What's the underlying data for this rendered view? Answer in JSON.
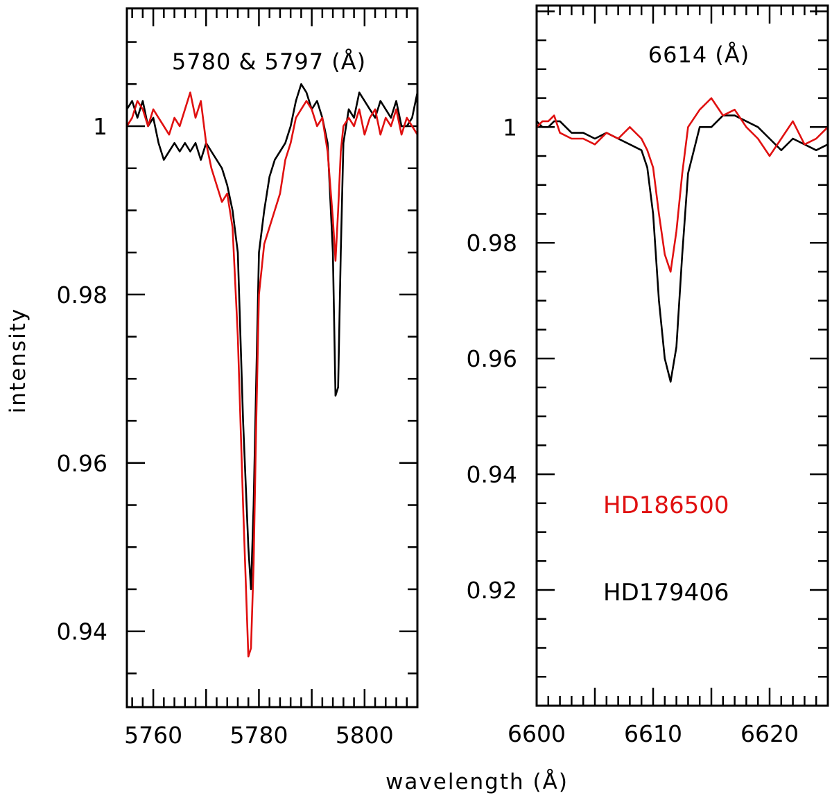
{
  "chart_data": [
    {
      "type": "line",
      "title": "5780 & 5797 (Å)",
      "xlabel": "wavelength (Å)",
      "ylabel": "intensity",
      "xlim": [
        5755,
        5810
      ],
      "ylim": [
        0.931,
        1.014
      ],
      "xticks": [
        5760,
        5780,
        5800
      ],
      "xtick_labels": [
        "5760",
        "5780",
        "5800"
      ],
      "yticks": [
        0.94,
        0.96,
        0.98,
        1
      ],
      "ytick_labels": [
        "0.94",
        "0.96",
        "0.98",
        "1"
      ],
      "series": [
        {
          "name": "HD179406",
          "color": "#000000",
          "x": [
            5755,
            5756,
            5757,
            5758,
            5759,
            5760,
            5761,
            5762,
            5763,
            5764,
            5765,
            5766,
            5767,
            5768,
            5769,
            5770,
            5771,
            5772,
            5773,
            5774,
            5775,
            5776,
            5777,
            5778,
            5778.5,
            5779,
            5779.5,
            5780,
            5781,
            5782,
            5783,
            5784,
            5785,
            5786,
            5787,
            5788,
            5789,
            5790,
            5791,
            5792,
            5793,
            5794,
            5794.5,
            5795,
            5795.5,
            5796,
            5797,
            5798,
            5799,
            5800,
            5801,
            5802,
            5803,
            5804,
            5805,
            5806,
            5807,
            5808,
            5809,
            5810
          ],
          "y": [
            1.002,
            1.003,
            1.001,
            1.003,
            1.0,
            1.001,
            0.998,
            0.996,
            0.997,
            0.998,
            0.997,
            0.998,
            0.997,
            0.998,
            0.996,
            0.998,
            0.997,
            0.996,
            0.995,
            0.993,
            0.99,
            0.985,
            0.965,
            0.95,
            0.945,
            0.955,
            0.97,
            0.985,
            0.99,
            0.994,
            0.996,
            0.997,
            0.998,
            1.0,
            1.003,
            1.005,
            1.004,
            1.002,
            1.003,
            1.001,
            0.998,
            0.985,
            0.968,
            0.969,
            0.985,
            0.998,
            1.002,
            1.001,
            1.004,
            1.003,
            1.002,
            1.001,
            1.003,
            1.002,
            1.001,
            1.003,
            1.0,
            1.0,
            1.001,
            1.004
          ]
        },
        {
          "name": "HD186500",
          "color": "#e01010",
          "x": [
            5755,
            5756,
            5757,
            5758,
            5759,
            5760,
            5761,
            5762,
            5763,
            5764,
            5765,
            5766,
            5767,
            5768,
            5769,
            5770,
            5771,
            5772,
            5773,
            5774,
            5775,
            5776,
            5777,
            5778,
            5778.5,
            5779,
            5779.5,
            5780,
            5781,
            5782,
            5783,
            5784,
            5785,
            5786,
            5787,
            5788,
            5789,
            5790,
            5791,
            5792,
            5793,
            5794,
            5794.5,
            5795,
            5795.5,
            5796,
            5797,
            5798,
            5799,
            5800,
            5801,
            5802,
            5803,
            5804,
            5805,
            5806,
            5807,
            5808,
            5809,
            5810
          ],
          "y": [
            1.0,
            1.001,
            1.003,
            1.002,
            1.0,
            1.002,
            1.001,
            1.0,
            0.999,
            1.001,
            1.0,
            1.002,
            1.004,
            1.001,
            1.003,
            0.998,
            0.995,
            0.993,
            0.991,
            0.992,
            0.988,
            0.975,
            0.955,
            0.937,
            0.938,
            0.948,
            0.965,
            0.98,
            0.986,
            0.988,
            0.99,
            0.992,
            0.996,
            0.998,
            1.001,
            1.002,
            1.003,
            1.002,
            1.0,
            1.001,
            0.997,
            0.989,
            0.984,
            0.99,
            0.997,
            1.0,
            1.001,
            1.0,
            1.002,
            0.999,
            1.001,
            1.002,
            0.999,
            1.001,
            1.0,
            1.002,
            0.999,
            1.001,
            1.0,
            0.999
          ]
        }
      ]
    },
    {
      "type": "line",
      "title": "6614 (Å)",
      "xlabel": "wavelength (Å)",
      "ylabel": "intensity",
      "xlim": [
        6600,
        6625
      ],
      "ylim": [
        0.9,
        1.021
      ],
      "xticks": [
        6600,
        6610,
        6620
      ],
      "xtick_labels": [
        "6600",
        "6610",
        "6620"
      ],
      "yticks": [
        0.92,
        0.94,
        0.96,
        0.98,
        1
      ],
      "ytick_labels": [
        "0.92",
        "0.94",
        "0.96",
        "0.98",
        "1"
      ],
      "series": [
        {
          "name": "HD179406",
          "color": "#000000",
          "x": [
            6600,
            6600.5,
            6601,
            6601.5,
            6602,
            6603,
            6604,
            6605,
            6606,
            6607,
            6608,
            6609,
            6609.5,
            6610,
            6610.5,
            6611,
            6611.5,
            6612,
            6612.5,
            6613,
            6614,
            6615,
            6616,
            6617,
            6618,
            6619,
            6620,
            6621,
            6622,
            6623,
            6624,
            6625
          ],
          "y": [
            1.001,
            1.0,
            1.0,
            1.001,
            1.001,
            0.999,
            0.999,
            0.998,
            0.999,
            0.998,
            0.997,
            0.996,
            0.993,
            0.985,
            0.97,
            0.96,
            0.956,
            0.962,
            0.978,
            0.992,
            1.0,
            1.0,
            1.002,
            1.002,
            1.001,
            1.0,
            0.998,
            0.996,
            0.998,
            0.997,
            0.996,
            0.997
          ]
        },
        {
          "name": "HD186500",
          "color": "#e01010",
          "x": [
            6600,
            6600.5,
            6601,
            6601.5,
            6602,
            6603,
            6604,
            6605,
            6606,
            6607,
            6608,
            6609,
            6609.5,
            6610,
            6610.5,
            6611,
            6611.5,
            6612,
            6612.5,
            6613,
            6614,
            6615,
            6616,
            6617,
            6618,
            6619,
            6620,
            6621,
            6622,
            6623,
            6624,
            6625
          ],
          "y": [
            1.0,
            1.001,
            1.001,
            1.002,
            0.999,
            0.998,
            0.998,
            0.997,
            0.999,
            0.998,
            1.0,
            0.998,
            0.996,
            0.993,
            0.985,
            0.978,
            0.975,
            0.982,
            0.992,
            1.0,
            1.003,
            1.005,
            1.002,
            1.003,
            1.0,
            0.998,
            0.995,
            0.998,
            1.001,
            0.997,
            0.998,
            1.0
          ]
        }
      ]
    }
  ],
  "legend": {
    "entries": [
      {
        "label": "HD186500",
        "color": "#e01010"
      },
      {
        "label": "HD179406",
        "color": "#000000"
      }
    ]
  }
}
